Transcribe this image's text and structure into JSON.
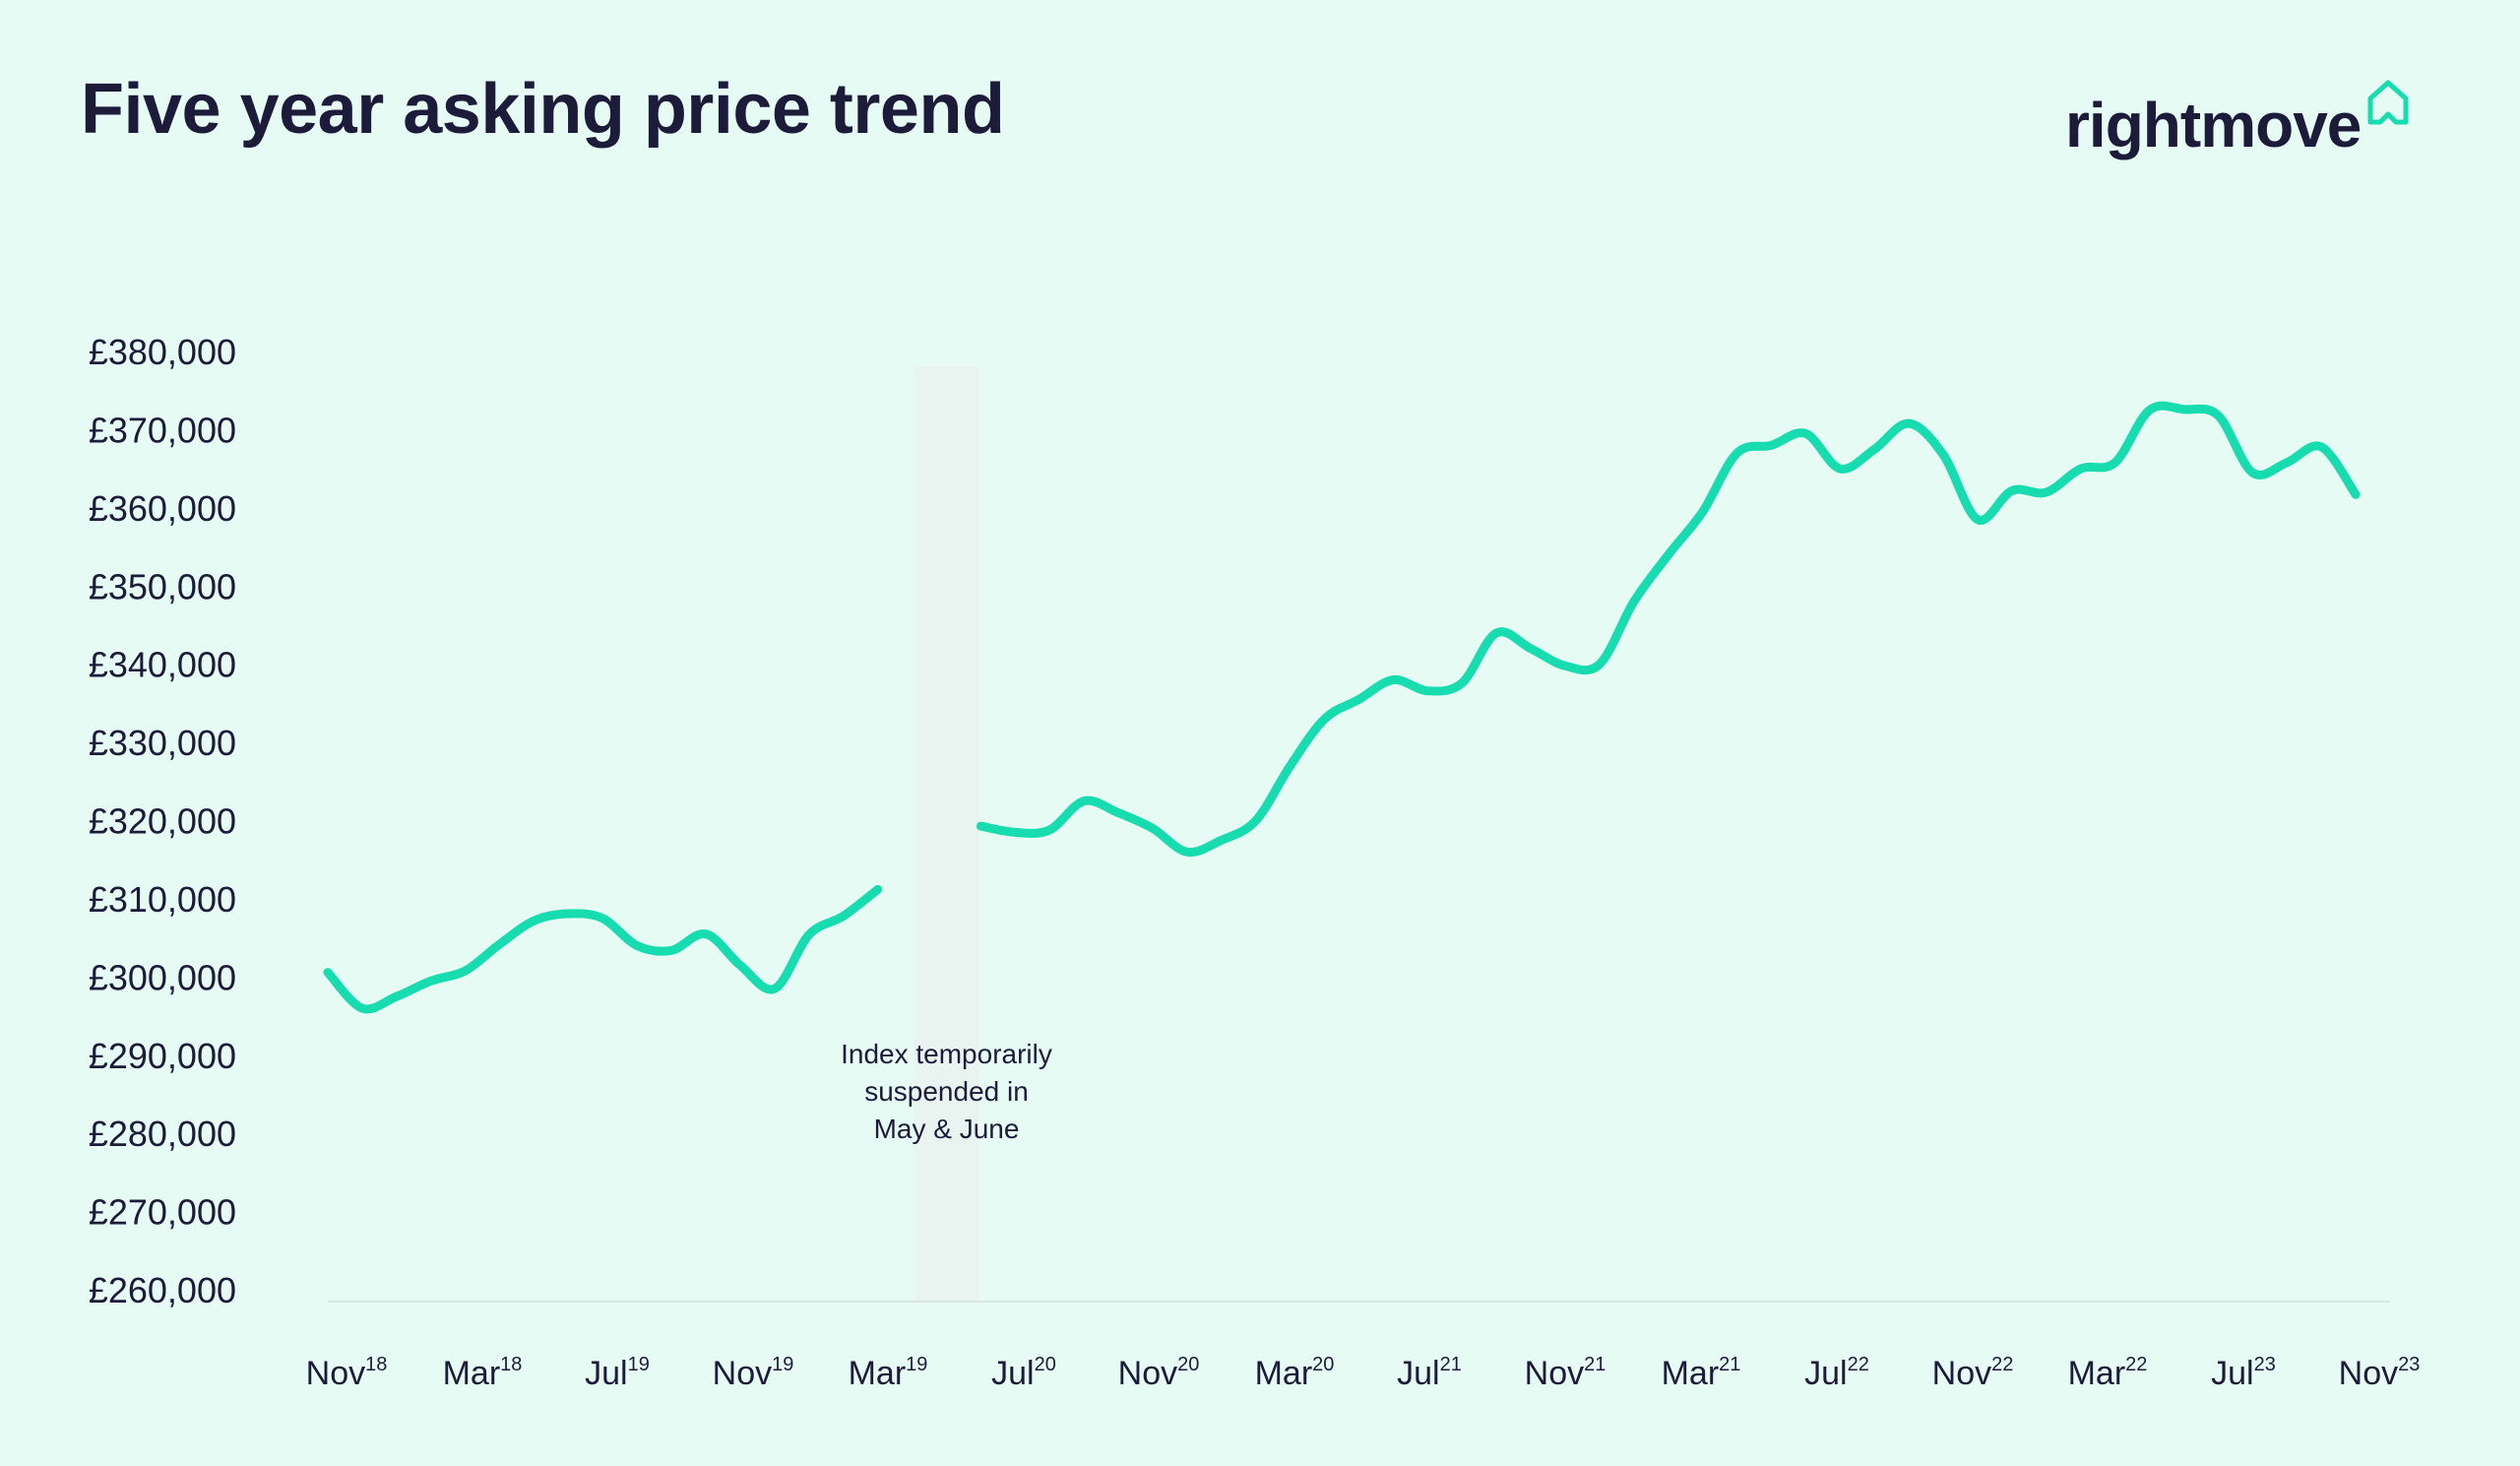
{
  "header": {
    "title": "Five year asking price trend",
    "logo_text": "rightmove",
    "logo_icon": "house-outline-icon"
  },
  "colors": {
    "background": "#e6fbf4",
    "line": "#17dcb0",
    "text": "#1c1c3a",
    "suspended_band": "#e9f4f0"
  },
  "chart_data": {
    "type": "line",
    "title": "Five year asking price trend",
    "xlabel": "",
    "ylabel": "",
    "ylim": [
      260000,
      380000
    ],
    "y_ticks": [
      "£380,000",
      "£370,000",
      "£360,000",
      "£350,000",
      "£340,000",
      "£330,000",
      "£320,000",
      "£310,000",
      "£300,000",
      "£290,000",
      "£280,000",
      "£270,000",
      "£260,000"
    ],
    "x_ticks": [
      {
        "month": "Nov",
        "year": "18"
      },
      {
        "month": "Mar",
        "year": "18"
      },
      {
        "month": "Jul",
        "year": "19"
      },
      {
        "month": "Nov",
        "year": "19"
      },
      {
        "month": "Mar",
        "year": "19"
      },
      {
        "month": "Jul",
        "year": "20"
      },
      {
        "month": "Nov",
        "year": "20"
      },
      {
        "month": "Mar",
        "year": "20"
      },
      {
        "month": "Jul",
        "year": "21"
      },
      {
        "month": "Nov",
        "year": "21"
      },
      {
        "month": "Mar",
        "year": "21"
      },
      {
        "month": "Jul",
        "year": "22"
      },
      {
        "month": "Nov",
        "year": "22"
      },
      {
        "month": "Mar",
        "year": "22"
      },
      {
        "month": "Jul",
        "year": "23"
      },
      {
        "month": "Nov",
        "year": "23"
      }
    ],
    "grid": false,
    "series": [
      {
        "segments": [
          [
            {
              "x": 0,
              "y": 300600
            },
            {
              "x": 1,
              "y": 296000
            },
            {
              "x": 2,
              "y": 297500
            },
            {
              "x": 3,
              "y": 299500
            },
            {
              "x": 4,
              "y": 300800
            },
            {
              "x": 5,
              "y": 304200
            },
            {
              "x": 6,
              "y": 307200
            },
            {
              "x": 7,
              "y": 308100
            },
            {
              "x": 8,
              "y": 307500
            },
            {
              "x": 9,
              "y": 304000
            },
            {
              "x": 10,
              "y": 303400
            },
            {
              "x": 11,
              "y": 305500
            },
            {
              "x": 12,
              "y": 301500
            },
            {
              "x": 13,
              "y": 298500
            },
            {
              "x": 14,
              "y": 305400
            },
            {
              "x": 15,
              "y": 307800
            },
            {
              "x": 16,
              "y": 311200
            }
          ],
          [
            {
              "x": 19,
              "y": 319300
            },
            {
              "x": 20,
              "y": 318500
            },
            {
              "x": 21,
              "y": 318800
            },
            {
              "x": 22,
              "y": 322500
            },
            {
              "x": 23,
              "y": 321000
            },
            {
              "x": 24,
              "y": 319000
            },
            {
              "x": 25,
              "y": 316000
            },
            {
              "x": 26,
              "y": 317500
            },
            {
              "x": 27,
              "y": 320000
            },
            {
              "x": 28,
              "y": 327000
            },
            {
              "x": 29,
              "y": 333000
            },
            {
              "x": 30,
              "y": 335500
            },
            {
              "x": 31,
              "y": 338000
            },
            {
              "x": 32,
              "y": 336600
            },
            {
              "x": 33,
              "y": 337600
            },
            {
              "x": 34,
              "y": 344000
            },
            {
              "x": 35,
              "y": 342000
            },
            {
              "x": 36,
              "y": 339800
            },
            {
              "x": 37,
              "y": 340000
            },
            {
              "x": 38,
              "y": 348000
            },
            {
              "x": 39,
              "y": 354000
            },
            {
              "x": 40,
              "y": 359500
            },
            {
              "x": 41,
              "y": 367000
            },
            {
              "x": 42,
              "y": 368000
            },
            {
              "x": 43,
              "y": 369500
            },
            {
              "x": 44,
              "y": 365000
            },
            {
              "x": 45,
              "y": 367500
            },
            {
              "x": 46,
              "y": 370800
            },
            {
              "x": 47,
              "y": 366800
            },
            {
              "x": 48,
              "y": 358500
            },
            {
              "x": 49,
              "y": 362200
            },
            {
              "x": 50,
              "y": 362000
            },
            {
              "x": 51,
              "y": 365000
            },
            {
              "x": 52,
              "y": 365800
            },
            {
              "x": 53,
              "y": 372500
            },
            {
              "x": 54,
              "y": 372600
            },
            {
              "x": 55,
              "y": 371800
            },
            {
              "x": 56,
              "y": 364500
            },
            {
              "x": 57,
              "y": 365800
            },
            {
              "x": 58,
              "y": 367800
            },
            {
              "x": 59,
              "y": 361700
            }
          ]
        ]
      }
    ],
    "x_range": [
      0,
      60
    ],
    "suspended_band": {
      "x_start": 17,
      "x_end": 19
    },
    "annotation": {
      "lines": [
        "Index temporarily",
        "suspended in",
        "May & June"
      ]
    }
  }
}
